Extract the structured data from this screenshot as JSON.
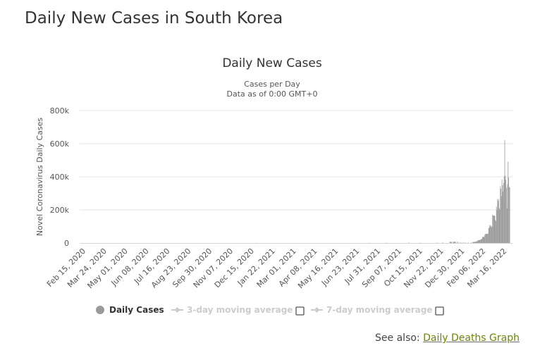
{
  "page": {
    "title": "Daily New Cases in South Korea"
  },
  "see_also": {
    "label": "See also:",
    "link": "Daily Deaths Graph"
  },
  "chart_data": {
    "type": "bar",
    "title": "Daily New Cases",
    "subtitle": [
      "Cases per Day",
      "Data as of 0:00 GMT+0"
    ],
    "ylabel": "Novel Coronavirus Daily Cases",
    "ylim": [
      0,
      800000
    ],
    "yticks": [
      0,
      200000,
      400000,
      600000,
      800000
    ],
    "ytick_labels": [
      "0",
      "200k",
      "400k",
      "600k",
      "800k"
    ],
    "xlim": [
      "2020-02-15",
      "2022-03-31"
    ],
    "xtick_dates": [
      "2020-02-15",
      "2020-03-24",
      "2020-05-01",
      "2020-06-08",
      "2020-07-16",
      "2020-08-23",
      "2020-09-30",
      "2020-11-07",
      "2020-12-15",
      "2021-01-22",
      "2021-03-01",
      "2021-04-08",
      "2021-05-16",
      "2021-06-23",
      "2021-07-31",
      "2021-09-07",
      "2021-10-15",
      "2021-11-22",
      "2021-12-30",
      "2022-02-06",
      "2022-03-16"
    ],
    "xtick_labels": [
      "Feb 15, 2020",
      "Mar 24, 2020",
      "May 01, 2020",
      "Jun 08, 2020",
      "Jul 16, 2020",
      "Aug 23, 2020",
      "Sep 30, 2020",
      "Nov 07, 2020",
      "Dec 15, 2020",
      "Jan 22, 2021",
      "Mar 01, 2021",
      "Apr 08, 2021",
      "May 16, 2021",
      "Jun 23, 2021",
      "Jul 31, 2021",
      "Sep 07, 2021",
      "Oct 15, 2021",
      "Nov 22, 2021",
      "Dec 30, 2021",
      "Feb 06, 2022",
      "Mar 16, 2022"
    ],
    "grid": true,
    "bar_color": "#999999",
    "points": [
      [
        "2020-02-29",
        909
      ],
      [
        "2020-03-15",
        76
      ],
      [
        "2020-04-15",
        27
      ],
      [
        "2020-05-15",
        29
      ],
      [
        "2020-06-15",
        37
      ],
      [
        "2020-07-15",
        39
      ],
      [
        "2020-08-27",
        441
      ],
      [
        "2020-09-15",
        113
      ],
      [
        "2020-10-15",
        110
      ],
      [
        "2020-11-15",
        223
      ],
      [
        "2020-12-15",
        880
      ],
      [
        "2020-12-25",
        1241
      ],
      [
        "2021-01-15",
        513
      ],
      [
        "2021-02-15",
        344
      ],
      [
        "2021-03-15",
        382
      ],
      [
        "2021-04-15",
        673
      ],
      [
        "2021-05-15",
        681
      ],
      [
        "2021-06-15",
        545
      ],
      [
        "2021-07-15",
        1600
      ],
      [
        "2021-08-15",
        1816
      ],
      [
        "2021-09-25",
        3273
      ],
      [
        "2021-10-15",
        1940
      ],
      [
        "2021-11-15",
        2419
      ],
      [
        "2021-11-25",
        4116
      ],
      [
        "2021-12-08",
        7175
      ],
      [
        "2021-12-09",
        7102
      ],
      [
        "2021-12-10",
        7022
      ],
      [
        "2021-12-11",
        6977
      ],
      [
        "2021-12-14",
        7850
      ],
      [
        "2021-12-15",
        7622
      ],
      [
        "2021-12-16",
        7435
      ],
      [
        "2021-12-17",
        7314
      ],
      [
        "2021-12-18",
        7314
      ],
      [
        "2021-12-21",
        7456
      ],
      [
        "2021-12-24",
        6233
      ],
      [
        "2021-12-28",
        5409
      ],
      [
        "2022-01-01",
        4415
      ],
      [
        "2022-01-05",
        4125
      ],
      [
        "2022-01-10",
        3094
      ],
      [
        "2022-01-15",
        4193
      ],
      [
        "2022-01-18",
        5805
      ],
      [
        "2022-01-19",
        5287
      ],
      [
        "2022-01-20",
        6603
      ],
      [
        "2022-01-21",
        6769
      ],
      [
        "2022-01-22",
        7009
      ],
      [
        "2022-01-23",
        7630
      ],
      [
        "2022-01-24",
        7513
      ],
      [
        "2022-01-25",
        8571
      ],
      [
        "2022-01-26",
        13012
      ],
      [
        "2022-01-27",
        14518
      ],
      [
        "2022-01-28",
        16096
      ],
      [
        "2022-01-29",
        17542
      ],
      [
        "2022-01-30",
        17079
      ],
      [
        "2022-01-31",
        18342
      ],
      [
        "2022-02-01",
        20270
      ],
      [
        "2022-02-02",
        20908
      ],
      [
        "2022-02-03",
        22907
      ],
      [
        "2022-02-04",
        27443
      ],
      [
        "2022-02-05",
        36362
      ],
      [
        "2022-02-06",
        38691
      ],
      [
        "2022-02-07",
        35286
      ],
      [
        "2022-02-08",
        36719
      ],
      [
        "2022-02-09",
        49567
      ],
      [
        "2022-02-10",
        54122
      ],
      [
        "2022-02-11",
        54941
      ],
      [
        "2022-02-12",
        56431
      ],
      [
        "2022-02-13",
        53926
      ],
      [
        "2022-02-14",
        54619
      ],
      [
        "2022-02-15",
        57177
      ],
      [
        "2022-02-16",
        90443
      ],
      [
        "2022-02-17",
        93135
      ],
      [
        "2022-02-18",
        109831
      ],
      [
        "2022-02-19",
        102211
      ],
      [
        "2022-02-20",
        104829
      ],
      [
        "2022-02-21",
        95362
      ],
      [
        "2022-02-22",
        99573
      ],
      [
        "2022-02-23",
        171452
      ],
      [
        "2022-02-24",
        165890
      ],
      [
        "2022-02-25",
        166209
      ],
      [
        "2022-02-26",
        165890
      ],
      [
        "2022-02-27",
        163565
      ],
      [
        "2022-02-28",
        139626
      ],
      [
        "2022-03-01",
        131703
      ],
      [
        "2022-03-02",
        219241
      ],
      [
        "2022-03-03",
        198803
      ],
      [
        "2022-03-04",
        266853
      ],
      [
        "2022-03-05",
        254327
      ],
      [
        "2022-03-06",
        264171
      ],
      [
        "2022-03-07",
        210716
      ],
      [
        "2022-03-08",
        202721
      ],
      [
        "2022-03-09",
        342446
      ],
      [
        "2022-03-10",
        327549
      ],
      [
        "2022-03-11",
        282987
      ],
      [
        "2022-03-12",
        383665
      ],
      [
        "2022-03-13",
        350190
      ],
      [
        "2022-03-14",
        309790
      ],
      [
        "2022-03-15",
        362338
      ],
      [
        "2022-03-16",
        400741
      ],
      [
        "2022-03-17",
        621328
      ],
      [
        "2022-03-18",
        407017
      ],
      [
        "2022-03-19",
        381454
      ],
      [
        "2022-03-20",
        334708
      ],
      [
        "2022-03-21",
        209169
      ],
      [
        "2022-03-22",
        353980
      ],
      [
        "2022-03-23",
        490881
      ],
      [
        "2022-03-24",
        395598
      ],
      [
        "2022-03-25",
        339514
      ],
      [
        "2022-03-26",
        335590
      ]
    ],
    "legend": {
      "placement": "bottom",
      "items": [
        {
          "label": "Daily Cases",
          "color": "#999999",
          "active": true
        },
        {
          "label": "3-day moving average",
          "color": "#cccccc",
          "active": false
        },
        {
          "label": "7-day moving average",
          "color": "#cccccc",
          "active": false
        }
      ]
    }
  }
}
